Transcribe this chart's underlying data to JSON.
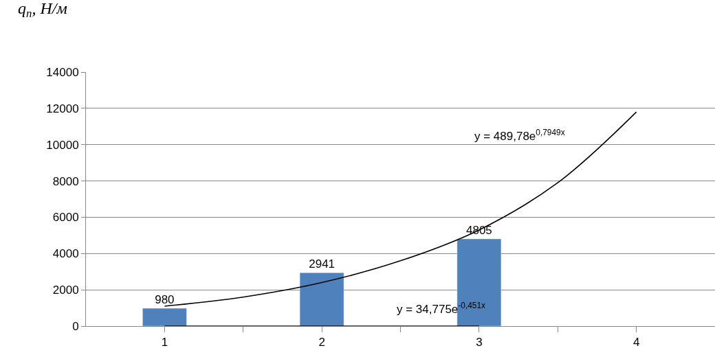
{
  "chart_data": {
    "type": "bar",
    "ylabel": "q$_{п}$, Н/м",
    "x": [
      1,
      2,
      3
    ],
    "series": [
      {
        "color": "#4f81bd",
        "values": [
          980,
          2941,
          4805
        ],
        "value_labels": [
          "980",
          "2941",
          "4805"
        ]
      },
      {
        "type": "line",
        "color": "#000000",
        "x": [
          1,
          1.5,
          2,
          2.5,
          3,
          3.5,
          4
        ],
        "values": [
          1100,
          1600,
          2400,
          3600,
          5300,
          7900,
          11800
        ]
      },
      {
        "type": "line",
        "color": "#000000",
        "x": [
          1,
          1.5,
          2,
          2.5,
          3
        ],
        "values": [
          0,
          0,
          0,
          0,
          0
        ]
      }
    ],
    "annotations": [
      "y = 489,78e$^{0,7949x}$",
      "y = 34,775e$^{-0,451x}$"
    ],
    "xlim": [
      0.5,
      4.5
    ],
    "xticks": [
      1,
      {
        "value": 1.5,
        "label": null
      },
      2,
      {
        "value": 2.5,
        "label": null
      },
      3,
      {
        "value": 3.5,
        "label": null
      },
      4
    ],
    "ylim": [
      0,
      14000
    ],
    "yticks": [
      0,
      2000,
      4000,
      6000,
      8000,
      10000,
      12000,
      14000
    ],
    "grid": "y"
  }
}
